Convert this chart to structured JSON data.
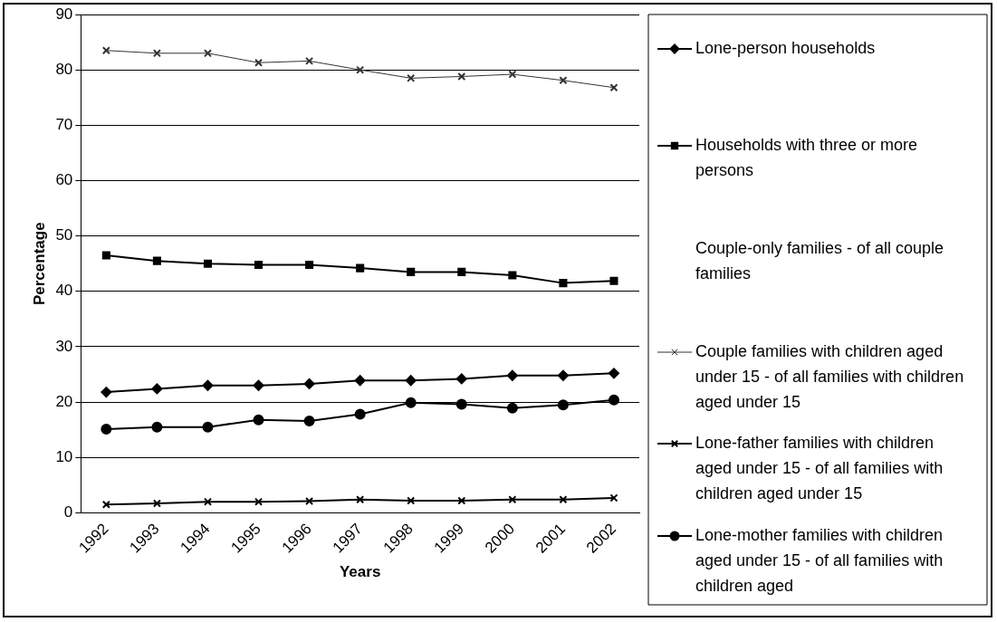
{
  "chart_data": {
    "type": "line",
    "xlabel": "Years",
    "ylabel": "Percentage",
    "categories": [
      "1992",
      "1993",
      "1994",
      "1995",
      "1996",
      "1997",
      "1998",
      "1999",
      "2000",
      "2001",
      "2002"
    ],
    "ylim": [
      0,
      90
    ],
    "yticks": [
      0,
      10,
      20,
      30,
      40,
      50,
      60,
      70,
      80,
      90
    ],
    "grid": "y",
    "legend": "right",
    "series": [
      {
        "name": "Lone-person households",
        "color": "#000000",
        "marker": "diamond",
        "values": [
          21.8,
          22.4,
          23.0,
          23.0,
          23.3,
          23.9,
          23.9,
          24.2,
          24.8,
          24.8,
          25.2
        ]
      },
      {
        "name": "Households with three or more persons",
        "color": "#000000",
        "marker": "square",
        "values": [
          46.5,
          45.5,
          45.0,
          44.8,
          44.8,
          44.2,
          43.5,
          43.5,
          42.9,
          41.5,
          41.9
        ]
      },
      {
        "name": "Couple-only families - of all couple families",
        "marker": "none",
        "values": [
          null,
          null,
          null,
          null,
          null,
          null,
          null,
          null,
          null,
          null,
          null
        ]
      },
      {
        "name": "Couple families with children aged under 15 - of all families with children aged under 15",
        "color": "#333333",
        "marker": "cross",
        "values": [
          83.5,
          83.0,
          83.0,
          81.3,
          81.6,
          80.0,
          78.5,
          78.8,
          79.2,
          78.1,
          76.8
        ]
      },
      {
        "name": "Lone-father families with children aged under 15 - of all families with children aged under 15",
        "color": "#000000",
        "marker": "cross",
        "values": [
          1.5,
          1.7,
          2.0,
          2.0,
          2.1,
          2.4,
          2.2,
          2.2,
          2.4,
          2.4,
          2.7
        ]
      },
      {
        "name": "Lone-mother families with children aged under 15 - of all families with children aged",
        "color": "#000000",
        "marker": "circle",
        "values": [
          15.1,
          15.5,
          15.5,
          16.8,
          16.6,
          17.8,
          19.9,
          19.6,
          18.9,
          19.5,
          20.4
        ]
      }
    ]
  }
}
